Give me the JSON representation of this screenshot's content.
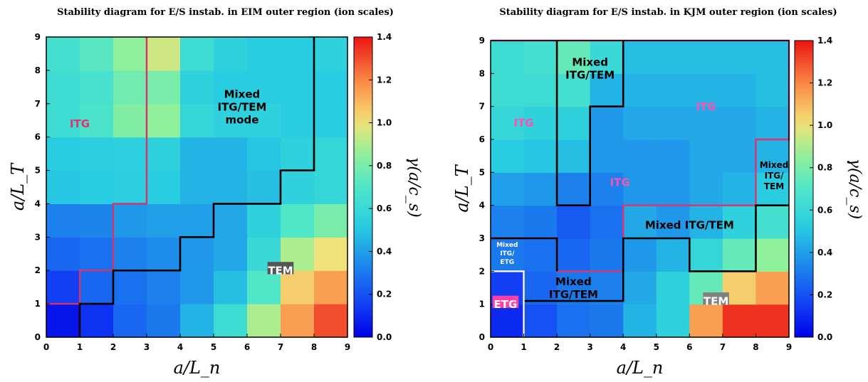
{
  "chart_data": [
    {
      "type": "heatmap",
      "title": "Stability diagram for E/S instab. in EIM outer region (ion scales)",
      "xlabel": "a/L_n",
      "ylabel": "a/L_T",
      "colorbar_label": "γ(a/c_s)",
      "xlim": [
        0,
        9
      ],
      "ylim": [
        0,
        9
      ],
      "clim": [
        0,
        1.4
      ],
      "x_ticks": [
        "0",
        "1",
        "2",
        "3",
        "4",
        "5",
        "6",
        "7",
        "8",
        "9"
      ],
      "y_ticks": [
        "0",
        "1",
        "2",
        "3",
        "4",
        "5",
        "6",
        "7",
        "8",
        "9"
      ],
      "colorbar_ticks": [
        "0.0",
        "0.2",
        "0.4",
        "0.6",
        "0.8",
        "1.0",
        "1.2",
        "1.4"
      ],
      "values": [
        [
          0.05,
          0.12,
          0.25,
          0.3,
          0.45,
          0.62,
          0.9,
          1.15,
          1.3
        ],
        [
          0.15,
          0.25,
          0.28,
          0.32,
          0.38,
          0.48,
          0.7,
          1.05,
          1.15
        ],
        [
          0.25,
          0.28,
          0.32,
          0.35,
          0.38,
          0.42,
          0.6,
          0.9,
          1.0
        ],
        [
          0.32,
          0.33,
          0.38,
          0.4,
          0.4,
          0.42,
          0.55,
          0.7,
          0.8
        ],
        [
          0.5,
          0.52,
          0.53,
          0.52,
          0.45,
          0.45,
          0.48,
          0.55,
          0.58
        ],
        [
          0.52,
          0.53,
          0.54,
          0.55,
          0.45,
          0.45,
          0.5,
          0.55,
          0.58
        ],
        [
          0.62,
          0.68,
          0.82,
          0.85,
          0.58,
          0.55,
          0.55,
          0.52,
          0.52
        ],
        [
          0.62,
          0.66,
          0.78,
          0.8,
          0.55,
          0.52,
          0.52,
          0.52,
          0.52
        ],
        [
          0.65,
          0.72,
          0.85,
          0.95,
          0.62,
          0.55,
          0.52,
          0.52,
          0.55
        ]
      ],
      "region_labels": [
        {
          "lines": [
            "ITG"
          ],
          "x": 1.0,
          "y": 6.4,
          "color": "#e0336e",
          "badge": false
        },
        {
          "lines": [
            "Mixed",
            "ITG/TEM",
            "mode"
          ],
          "x": 5.85,
          "y": 6.9,
          "color": "#000000",
          "badge": false
        },
        {
          "lines": [
            "TEM"
          ],
          "x": 7.0,
          "y": 2.0,
          "color": "#ffffff",
          "badge": true,
          "badge_color": "#555555"
        }
      ],
      "boundaries": [
        {
          "color": "#d6336c",
          "points": [
            [
              0,
              1
            ],
            [
              1,
              1
            ],
            [
              1,
              2
            ],
            [
              2,
              2
            ],
            [
              2,
              4
            ],
            [
              3,
              4
            ],
            [
              3,
              9
            ]
          ]
        },
        {
          "color": "#000000",
          "points": [
            [
              1,
              0
            ],
            [
              1,
              1
            ],
            [
              2,
              1
            ],
            [
              2,
              2
            ],
            [
              4,
              2
            ],
            [
              4,
              3
            ],
            [
              5,
              3
            ],
            [
              5,
              4
            ],
            [
              7,
              4
            ],
            [
              7,
              5
            ],
            [
              8,
              5
            ],
            [
              8,
              9
            ]
          ]
        }
      ]
    },
    {
      "type": "heatmap",
      "title": "Stability diagram for E/S instab. in KJM outer region (ion scales)",
      "xlabel": "a/L_n",
      "ylabel": "a/L_T",
      "colorbar_label": "γ(a/c_s)",
      "xlim": [
        0,
        9
      ],
      "ylim": [
        0,
        9
      ],
      "clim": [
        0,
        1.4
      ],
      "x_ticks": [
        "0",
        "1",
        "2",
        "3",
        "4",
        "5",
        "6",
        "7",
        "8",
        "9"
      ],
      "y_ticks": [
        "0",
        "1",
        "2",
        "3",
        "4",
        "5",
        "6",
        "7",
        "8",
        "9"
      ],
      "colorbar_ticks": [
        "0.0",
        "0.2",
        "0.4",
        "0.6",
        "0.8",
        "1.0",
        "1.2",
        "1.4"
      ],
      "values": [
        [
          0.1,
          0.2,
          0.28,
          0.3,
          0.45,
          0.55,
          1.15,
          1.35,
          1.35
        ],
        [
          0.15,
          0.25,
          0.3,
          0.32,
          0.42,
          0.55,
          0.75,
          1.05,
          1.15
        ],
        [
          0.3,
          0.28,
          0.25,
          0.3,
          0.38,
          0.45,
          0.58,
          0.75,
          0.85
        ],
        [
          0.32,
          0.3,
          0.22,
          0.28,
          0.42,
          0.38,
          0.45,
          0.55,
          0.65
        ],
        [
          0.4,
          0.38,
          0.32,
          0.32,
          0.38,
          0.38,
          0.42,
          0.45,
          0.52
        ],
        [
          0.52,
          0.5,
          0.48,
          0.38,
          0.38,
          0.38,
          0.42,
          0.42,
          0.45
        ],
        [
          0.58,
          0.55,
          0.55,
          0.38,
          0.42,
          0.42,
          0.42,
          0.42,
          0.45
        ],
        [
          0.62,
          0.62,
          0.65,
          0.45,
          0.45,
          0.45,
          0.45,
          0.45,
          0.48
        ],
        [
          0.62,
          0.65,
          0.75,
          0.6,
          0.48,
          0.48,
          0.48,
          0.48,
          0.48
        ]
      ],
      "region_labels": [
        {
          "lines": [
            "ITG"
          ],
          "x": 1.0,
          "y": 6.5,
          "color": "#ff4fb0",
          "badge": false
        },
        {
          "lines": [
            "Mixed",
            "ITG/TEM"
          ],
          "x": 3.0,
          "y": 8.15,
          "color": "#000000",
          "badge": false
        },
        {
          "lines": [
            "ITG"
          ],
          "x": 6.5,
          "y": 7.0,
          "color": "#ff4fb0",
          "badge": false
        },
        {
          "lines": [
            "ITG"
          ],
          "x": 3.9,
          "y": 4.7,
          "color": "#ff4fb0",
          "badge": false
        },
        {
          "lines": [
            "Mixed",
            "ITG/",
            "TEM"
          ],
          "x": 8.55,
          "y": 4.9,
          "color": "#000000",
          "badge": false
        },
        {
          "lines": [
            "Mixed ITG/TEM"
          ],
          "x": 6.0,
          "y": 3.4,
          "color": "#000000",
          "badge": false
        },
        {
          "lines": [
            "Mixed",
            "ITG/",
            "ETG"
          ],
          "x": 0.5,
          "y": 2.55,
          "color": "#ffffff",
          "badge": false
        },
        {
          "lines": [
            "Mixed",
            "ITG/TEM"
          ],
          "x": 2.5,
          "y": 1.5,
          "color": "#000000",
          "badge": false
        },
        {
          "lines": [
            "ETG"
          ],
          "x": 0.45,
          "y": 1.0,
          "color": "#ffffff",
          "badge": true,
          "badge_color": "#ff3fa8"
        },
        {
          "lines": [
            "TEM"
          ],
          "x": 6.8,
          "y": 1.1,
          "color": "#ffffff",
          "badge": true,
          "badge_color": "#808080"
        }
      ],
      "boundaries": [
        {
          "color": "#e0336e",
          "points": [
            [
              0,
              9
            ],
            [
              9,
              9
            ],
            [
              9,
              6
            ],
            [
              8,
              6
            ],
            [
              8,
              4
            ],
            [
              4,
              4
            ],
            [
              4,
              2
            ],
            [
              2,
              2
            ],
            [
              2,
              3
            ],
            [
              0,
              3
            ]
          ]
        },
        {
          "color": "#000000",
          "points": [
            [
              2,
              9
            ],
            [
              2,
              4
            ],
            [
              3,
              4
            ],
            [
              3,
              7
            ],
            [
              4,
              7
            ],
            [
              4,
              9
            ]
          ]
        },
        {
          "color": "#000000",
          "points": [
            [
              0,
              3
            ],
            [
              2,
              3
            ],
            [
              2,
              2
            ]
          ]
        },
        {
          "color": "#000000",
          "points": [
            [
              0,
              2
            ],
            [
              1,
              2
            ],
            [
              1,
              0
            ]
          ]
        },
        {
          "color": "#000000",
          "points": [
            [
              1,
              1.1
            ],
            [
              4,
              1.1
            ],
            [
              4,
              3
            ],
            [
              6,
              3
            ],
            [
              6,
              2
            ],
            [
              8,
              2
            ],
            [
              8,
              4
            ],
            [
              9,
              4
            ]
          ]
        },
        {
          "color": "#ffffff",
          "points": [
            [
              0,
              2
            ],
            [
              1,
              2
            ],
            [
              1,
              0
            ]
          ]
        }
      ]
    }
  ]
}
